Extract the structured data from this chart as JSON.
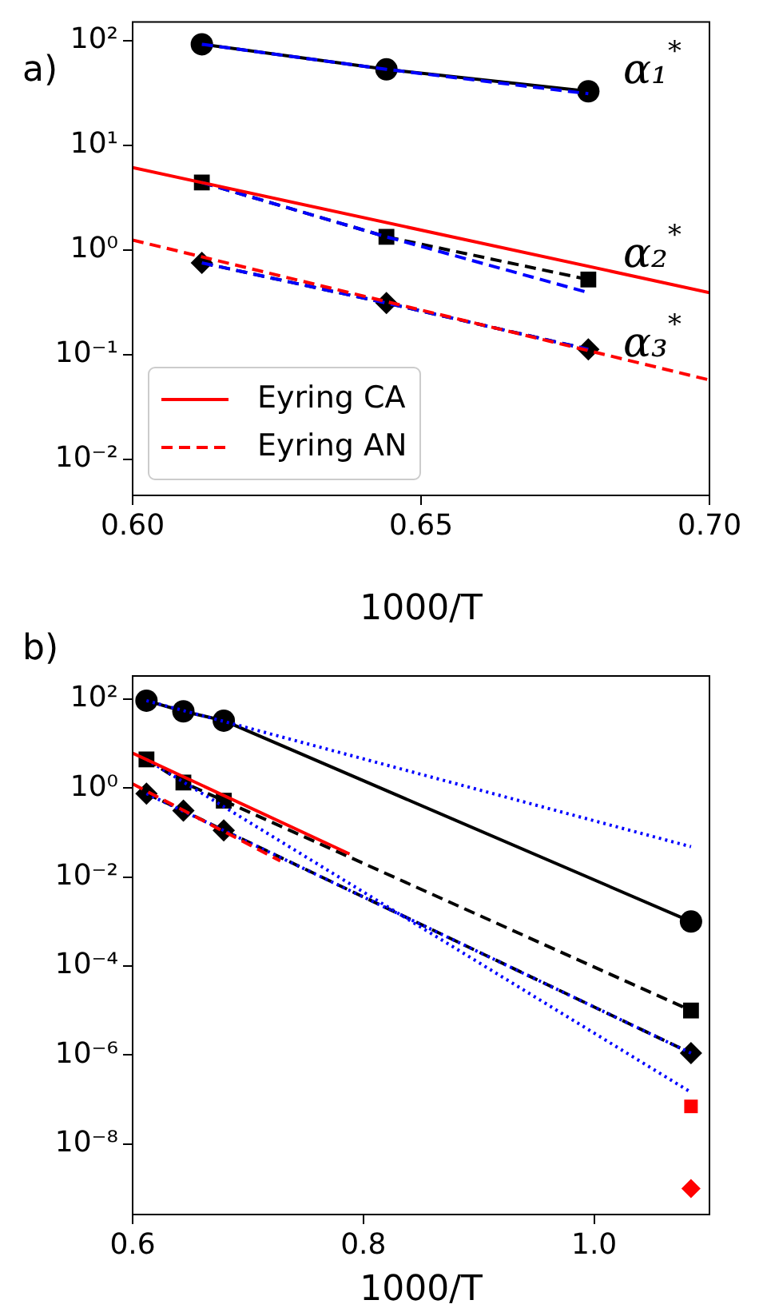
{
  "chart_data": [
    {
      "type": "line",
      "xlabel": "1000/T",
      "log": "y",
      "grid": false,
      "legend": "bottom left",
      "xlim": [
        0.6,
        0.7
      ],
      "xticks": [
        {
          "value": 0.6,
          "label": "0.60"
        },
        0.65,
        {
          "value": 0.7,
          "label": "0.70"
        }
      ],
      "ylim": [
        0.0045,
        150
      ],
      "yticks": [
        {
          "value": 100,
          "label": "10²"
        },
        {
          "value": 10,
          "label": "10¹"
        },
        {
          "value": 1,
          "label": "10⁰"
        },
        {
          "value": 0.1,
          "label": "10⁻¹"
        },
        {
          "value": 0.01,
          "label": "10⁻²"
        }
      ],
      "series": [
        {
          "name": "Eyring CA",
          "color": "#ff0000",
          "x": [
            0.6,
            0.7
          ],
          "values": [
            6.1,
            0.39
          ],
          "marker": "none",
          "line_style": "solid"
        },
        {
          "name": "Eyring AN",
          "color": "#ff0000",
          "x": [
            0.6,
            0.7
          ],
          "values": [
            1.24,
            0.057
          ],
          "marker": "none",
          "line_style": "dashed"
        },
        {
          "color": "#000000",
          "x": [
            0.612,
            0.644,
            0.679
          ],
          "values": [
            92,
            53,
            32.7
          ],
          "marker": "circle",
          "line_style": "solid"
        },
        {
          "color": "#000000",
          "x": [
            0.612,
            0.644,
            0.679
          ],
          "values": [
            4.4,
            1.33,
            0.52
          ],
          "marker": "square",
          "line_style": "dashed"
        },
        {
          "color": "#000000",
          "x": [
            0.612,
            0.644,
            0.679
          ],
          "values": [
            0.75,
            0.31,
            0.112
          ],
          "marker": "diamond",
          "line_style": "dashed"
        },
        {
          "color": "#0000ff",
          "x": [
            0.612,
            0.644,
            0.679
          ],
          "values": [
            92,
            53,
            31
          ],
          "marker": "none",
          "line_style": "dashed"
        },
        {
          "color": "#0000ff",
          "x": [
            0.612,
            0.644,
            0.679
          ],
          "values": [
            4.4,
            1.33,
            0.39
          ],
          "marker": "none",
          "line_style": "dashed"
        },
        {
          "color": "#0000ff",
          "x": [
            0.612,
            0.644,
            0.679
          ],
          "values": [
            0.75,
            0.31,
            0.112
          ],
          "marker": "none",
          "line_style": "dashed"
        }
      ],
      "annotations": [
        "a)",
        "α₁$^{*}$",
        "α₂$^{*}$",
        "α₃$^{*}$"
      ]
    },
    {
      "type": "line",
      "xlabel": "1000/T",
      "log": "y",
      "grid": false,
      "legend": false,
      "xlim": [
        0.6,
        1.1
      ],
      "xticks": [
        0.6,
        0.8,
        {
          "value": 1,
          "label": "1.0"
        }
      ],
      "ylim": [
        2.6e-10,
        330
      ],
      "yticks": [
        {
          "value": 100,
          "label": "10²"
        },
        {
          "value": 1,
          "label": "10⁰"
        },
        {
          "value": 0.01,
          "label": "10⁻²"
        },
        {
          "value": 0.0001,
          "label": "10⁻⁴"
        },
        {
          "value": 1e-06,
          "label": "10⁻⁶"
        },
        {
          "value": 1e-08,
          "label": "10⁻⁸"
        }
      ],
      "series": [
        {
          "color": "#ff0000",
          "x": [
            0.6,
            0.788
          ],
          "values": [
            6.1,
            0.033
          ],
          "marker": "none",
          "line_style": "solid"
        },
        {
          "color": "#ff0000",
          "x": [
            0.6,
            0.728
          ],
          "values": [
            1.24,
            0.023
          ],
          "marker": "none",
          "line_style": "dashed"
        },
        {
          "color": "#0000ff",
          "x": [
            0.612,
            1.084
          ],
          "values": [
            92,
            0.048
          ],
          "marker": "none",
          "line_style": "dotted"
        },
        {
          "color": "#0000ff",
          "x": [
            0.612,
            1.084
          ],
          "values": [
            4.4,
            1.45e-07
          ],
          "marker": "none",
          "line_style": "dotted"
        },
        {
          "color": "#0000ff",
          "x": [
            0.612,
            1.084
          ],
          "values": [
            0.75,
            1.1e-06
          ],
          "marker": "none",
          "line_style": "dotted"
        },
        {
          "color": "#000000",
          "x": [
            0.612,
            0.644,
            0.679,
            1.084
          ],
          "values": [
            92,
            53,
            32.7,
            0.001
          ],
          "marker": "circle",
          "line_style": "solid"
        },
        {
          "color": "#000000",
          "x": [
            0.612,
            0.644,
            0.679,
            1.084
          ],
          "values": [
            4.4,
            1.33,
            0.52,
            1e-05
          ],
          "marker": "square",
          "line_style": "dashed"
        },
        {
          "color": "#000000",
          "x": [
            0.612,
            0.644,
            0.679,
            1.084
          ],
          "values": [
            0.75,
            0.31,
            0.112,
            1.1e-06
          ],
          "marker": "diamond",
          "line_style": "dashed"
        },
        {
          "type": "scatter",
          "color": "#ff0000",
          "x": [
            1.084
          ],
          "values": [
            7e-08
          ],
          "marker": "square"
        },
        {
          "type": "scatter",
          "color": "#ff0000",
          "x": [
            1.084
          ],
          "values": [
            1e-09
          ],
          "marker": "diamond"
        }
      ],
      "annotations": [
        "b)"
      ]
    }
  ]
}
